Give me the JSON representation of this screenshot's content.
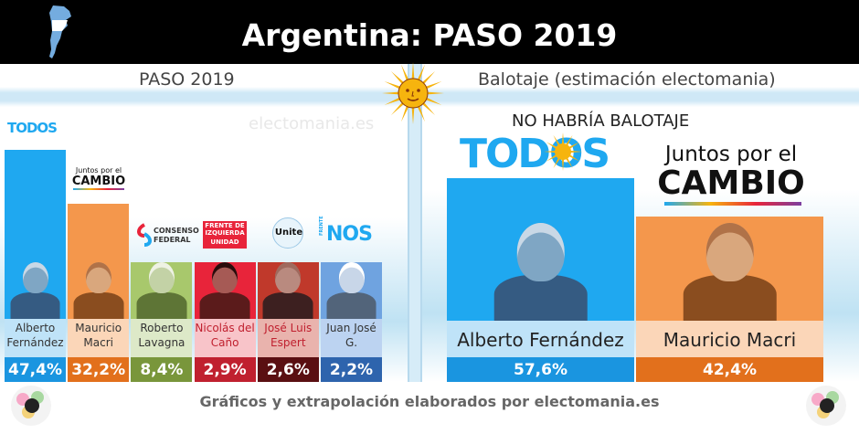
{
  "page": {
    "title": "Argentina: PASO 2019",
    "left_section_title": "PASO 2019",
    "right_section_title": "Balotaje (estimación electomania)",
    "watermark": "electomania.es",
    "balotaje_note": "NO HABRÍA BALOTAJE",
    "footer": "Gráficos y extrapolación elaborados por electomania.es"
  },
  "logos": {
    "todos": "TODOS",
    "juntos_line1": "Juntos por el",
    "juntos_line2": "CAMBIO",
    "consenso_line1": "CONSENSO",
    "consenso_line2": "FEDERAL",
    "frente_line1": "FRENTE DE",
    "frente_line2": "IZQUIERDA",
    "frente_line3": "UNIDAD",
    "unite": "Unite",
    "nos": "NOS",
    "nos_side": "FRENTE"
  },
  "colors": {
    "fernandez": "#1fa8f0",
    "fernandez_name_bg": "#bfe3f8",
    "macri": "#f4974c",
    "macri_name_bg": "#fbd6b8",
    "lavagna": "#a8c86c",
    "lavagna_name_bg": "#dde9c8",
    "lavagna_pct_bg": "#79963b",
    "delcano": "#e8243a",
    "delcano_name_bg": "#f8c4c9",
    "delcano_pct_bg": "#c0202f",
    "espert": "#c0392b",
    "espert_name_bg": "#e9b3ad",
    "espert_pct_bg": "#5a0f12",
    "gomez": "#6fa3e0",
    "gomez_name_bg": "#bcd3f1",
    "gomez_pct_bg": "#2e64ad",
    "fernandez_pct_bg": "#1a95e0",
    "macri_pct_bg": "#e2701c",
    "macri_pct_bg2": "#e06e1a"
  },
  "chart_data": [
    {
      "type": "bar",
      "title": "PASO 2019",
      "categories": [
        "Alberto Fernández",
        "Mauricio Macri",
        "Roberto Lavagna",
        "Nicolás del Caño",
        "José Luis Espert",
        "Juan José G."
      ],
      "name_lines": [
        [
          "Alberto",
          "Fernández"
        ],
        [
          "Mauricio",
          "Macri"
        ],
        [
          "Roberto",
          "Lavagna"
        ],
        [
          "Nicolás del",
          "Caño"
        ],
        [
          "José Luis",
          "Espert"
        ],
        [
          "Juan José",
          "G."
        ]
      ],
      "values": [
        47.4,
        32.2,
        8.4,
        2.9,
        2.6,
        2.2
      ],
      "labels": [
        "47,4%",
        "32,2%",
        "8,4%",
        "2,9%",
        "2,6%",
        "2,2%"
      ],
      "ylim": [
        0,
        50
      ]
    },
    {
      "type": "bar",
      "title": "Balotaje (estimación electomania)",
      "categories": [
        "Alberto Fernández",
        "Mauricio Macri"
      ],
      "values": [
        57.6,
        42.4
      ],
      "labels": [
        "57,6%",
        "42,4%"
      ],
      "ylim": [
        0,
        60
      ]
    }
  ]
}
